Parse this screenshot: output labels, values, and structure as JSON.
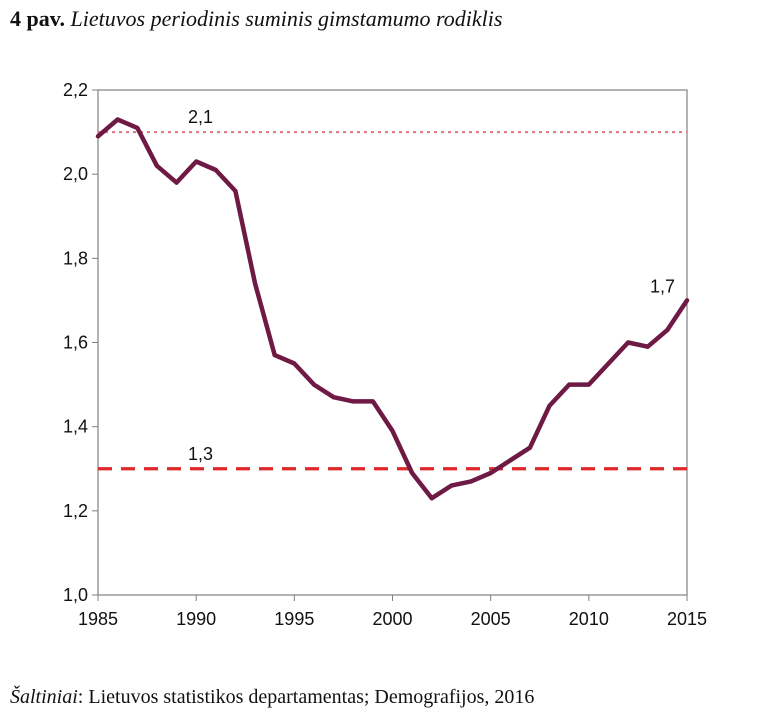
{
  "title": {
    "number": "4 pav.",
    "text": "Lietuvos periodinis suminis gimstamumo rodiklis"
  },
  "source": {
    "label": "Šaltiniai",
    "separator": ": ",
    "text": "Lietuvos statistikos departamentas; Demografijos, 2016"
  },
  "colors": {
    "series": "#6e1a45",
    "ref_high": "#e0707a",
    "ref_low": "#e02828",
    "axis": "#808080"
  },
  "chart_data": {
    "type": "line",
    "xlim": [
      1985,
      2015
    ],
    "ylim": [
      1.0,
      2.2
    ],
    "x_ticks": [
      1985,
      1990,
      1995,
      2000,
      2005,
      2010,
      2015
    ],
    "y_ticks": [
      {
        "value": 1.0,
        "label": "1,0"
      },
      {
        "value": 1.2,
        "label": "1,2"
      },
      {
        "value": 1.4,
        "label": "1,4"
      },
      {
        "value": 1.6,
        "label": "1,6"
      },
      {
        "value": 1.8,
        "label": "1,8"
      },
      {
        "value": 2.0,
        "label": "2,0"
      },
      {
        "value": 2.2,
        "label": "2,2"
      }
    ],
    "grid": false,
    "series": [
      {
        "x": [
          1985,
          1986,
          1987,
          1988,
          1989,
          1990,
          1991,
          1992,
          1993,
          1994,
          1995,
          1996,
          1997,
          1998,
          1999,
          2000,
          2001,
          2002,
          2003,
          2004,
          2005,
          2006,
          2007,
          2008,
          2009,
          2010,
          2011,
          2012,
          2013,
          2014,
          2015
        ],
        "y": [
          2.09,
          2.13,
          2.11,
          2.02,
          1.98,
          2.03,
          2.01,
          1.96,
          1.74,
          1.57,
          1.55,
          1.5,
          1.47,
          1.46,
          1.46,
          1.39,
          1.29,
          1.23,
          1.26,
          1.27,
          1.29,
          1.32,
          1.35,
          1.45,
          1.5,
          1.5,
          1.55,
          1.6,
          1.59,
          1.63,
          1.7
        ]
      }
    ],
    "reference_lines": [
      {
        "value": 2.1,
        "label": "2,1",
        "style": "dotted"
      },
      {
        "value": 1.3,
        "label": "1,3",
        "style": "dashed"
      }
    ],
    "annotations": [
      {
        "text": "1,7",
        "x": 2015,
        "y": 1.7
      }
    ]
  }
}
